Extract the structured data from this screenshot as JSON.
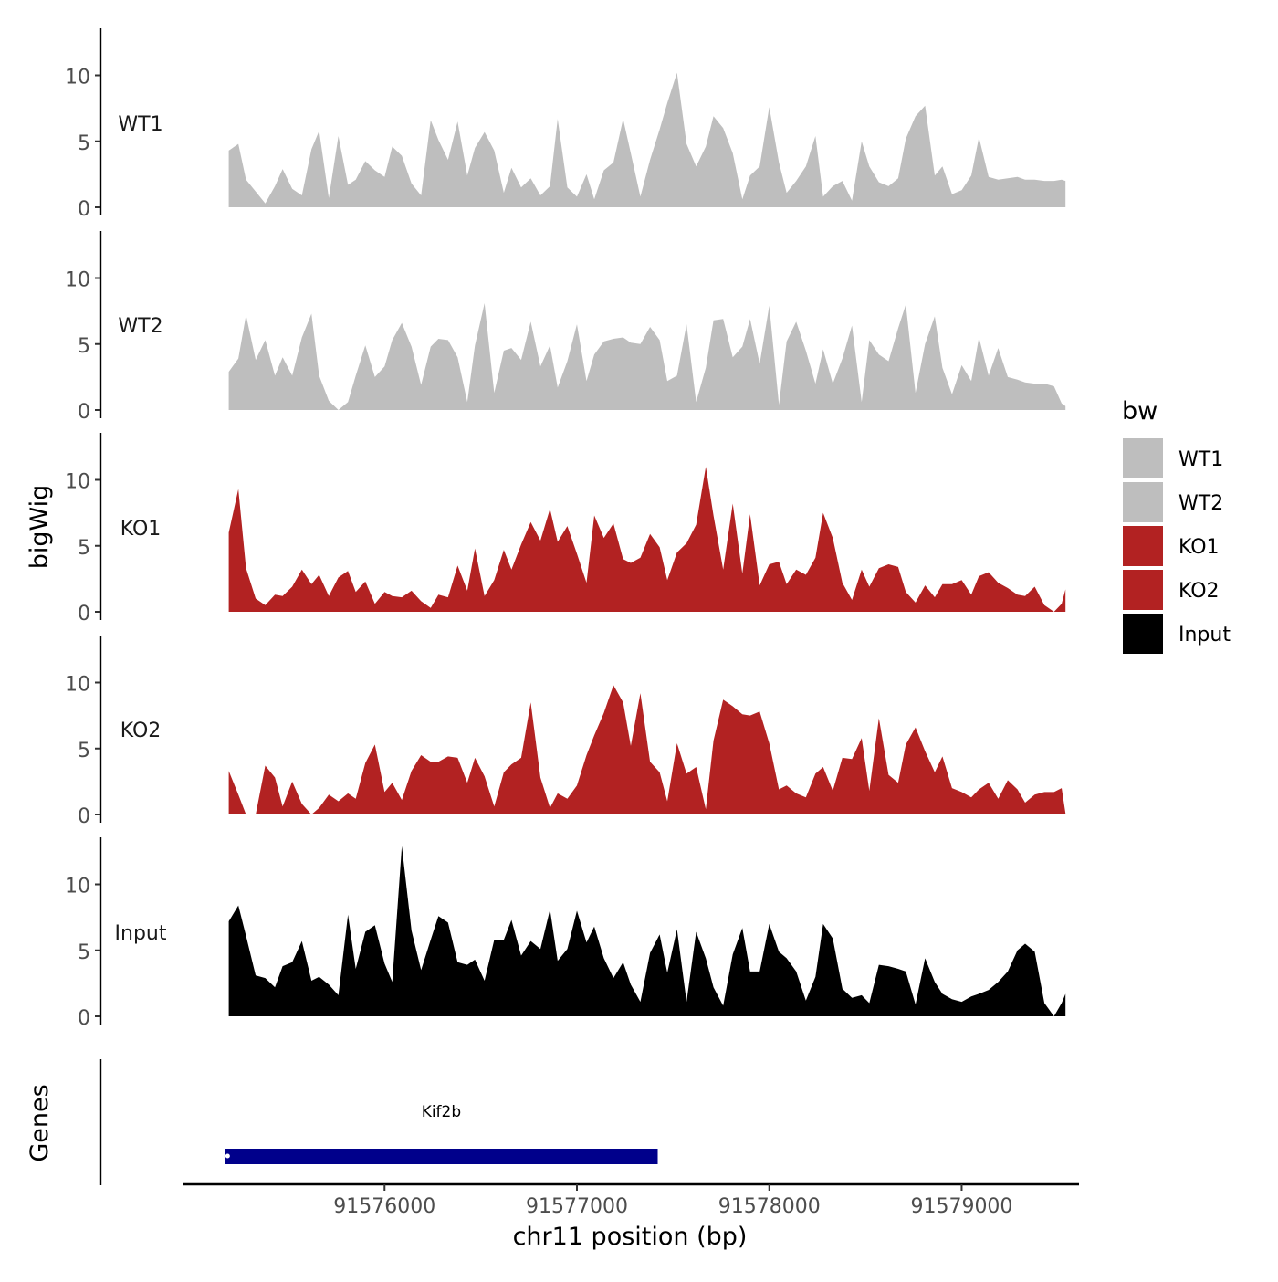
{
  "chart_data": {
    "type": "area",
    "y_axis_title": "bigWig",
    "x_axis_title": "chr11 position (bp)",
    "genes_axis_title": "Genes",
    "xlim": [
      91574950,
      91579610
    ],
    "data_xrange": [
      91575190,
      91579540
    ],
    "y_range": [
      0,
      14
    ],
    "y_ticks": [
      0,
      5,
      10
    ],
    "x_ticks": [
      91576000,
      91577000,
      91578000,
      91579000
    ],
    "x_tick_labels": [
      "91576000",
      "91577000",
      "91578000",
      "91579000"
    ],
    "legend": {
      "title": "bw",
      "entries": [
        {
          "label": "WT1",
          "color": "#bebebe"
        },
        {
          "label": "WT2",
          "color": "#bebebe"
        },
        {
          "label": "KO1",
          "color": "#b22222"
        },
        {
          "label": "KO2",
          "color": "#b22222"
        },
        {
          "label": "Input",
          "color": "#000000"
        }
      ]
    },
    "series": [
      {
        "name": "WT1",
        "color": "#bebebe",
        "x": [
          91575190,
          91575240,
          91575280,
          91575330,
          91575380,
          91575430,
          91575470,
          91575520,
          91575570,
          91575620,
          91575660,
          91575710,
          91575760,
          91575810,
          91575850,
          91575900,
          91575950,
          91576000,
          91576040,
          91576090,
          91576140,
          91576190,
          91576240,
          91576280,
          91576330,
          91576380,
          91576430,
          91576470,
          91576520,
          91576570,
          91576620,
          91576660,
          91576710,
          91576760,
          91576810,
          91576860,
          91576900,
          91576950,
          91577000,
          91577050,
          91577090,
          91577140,
          91577190,
          91577240,
          91577280,
          91577330,
          91577380,
          91577430,
          91577470,
          91577520,
          91577570,
          91577620,
          91577670,
          91577710,
          91577760,
          91577810,
          91577860,
          91577900,
          91577950,
          91578000,
          91578050,
          91578090,
          91578140,
          91578190,
          91578240,
          91578280,
          91578330,
          91578380,
          91578430,
          91578480,
          91578520,
          91578570,
          91578620,
          91578670,
          91578710,
          91578760,
          91578810,
          91578860,
          91578900,
          91578950,
          91579000,
          91579050,
          91579090,
          91579140,
          91579190,
          91579240,
          91579290,
          91579330,
          91579380,
          91579430,
          91579480,
          91579520,
          91579540
        ],
        "values": [
          4.3,
          4.8,
          2.1,
          1.2,
          0.3,
          1.6,
          2.9,
          1.4,
          0.9,
          4.4,
          5.8,
          0.7,
          5.4,
          1.7,
          2.1,
          3.5,
          2.8,
          2.3,
          4.6,
          3.9,
          1.8,
          0.9,
          6.6,
          5.1,
          3.6,
          6.5,
          2.4,
          4.5,
          5.7,
          4.3,
          1.1,
          3.0,
          1.5,
          2.2,
          0.9,
          1.6,
          6.7,
          1.5,
          0.8,
          2.5,
          0.6,
          2.8,
          3.4,
          6.7,
          4.1,
          0.8,
          3.6,
          5.9,
          7.9,
          10.2,
          4.8,
          3.1,
          4.6,
          6.9,
          6.0,
          4.1,
          0.6,
          2.4,
          3.1,
          7.6,
          3.4,
          1.1,
          2.0,
          3.1,
          5.4,
          0.8,
          1.6,
          2.0,
          0.5,
          5.0,
          3.1,
          1.9,
          1.6,
          2.2,
          5.2,
          6.9,
          7.7,
          2.4,
          3.1,
          1.0,
          1.3,
          2.4,
          5.3,
          2.3,
          2.1,
          2.2,
          2.3,
          2.1,
          2.1,
          2.0,
          2.0,
          2.1,
          2.0
        ]
      },
      {
        "name": "WT2",
        "color": "#bebebe",
        "x": [
          91575190,
          91575240,
          91575280,
          91575330,
          91575380,
          91575430,
          91575470,
          91575520,
          91575570,
          91575620,
          91575660,
          91575710,
          91575760,
          91575810,
          91575850,
          91575900,
          91575950,
          91576000,
          91576040,
          91576090,
          91576140,
          91576190,
          91576240,
          91576280,
          91576330,
          91576380,
          91576430,
          91576470,
          91576520,
          91576570,
          91576620,
          91576660,
          91576710,
          91576760,
          91576810,
          91576860,
          91576900,
          91576950,
          91577000,
          91577050,
          91577090,
          91577140,
          91577190,
          91577240,
          91577280,
          91577330,
          91577380,
          91577430,
          91577470,
          91577520,
          91577570,
          91577620,
          91577670,
          91577710,
          91577760,
          91577810,
          91577860,
          91577900,
          91577950,
          91578000,
          91578050,
          91578090,
          91578140,
          91578190,
          91578240,
          91578280,
          91578330,
          91578380,
          91578430,
          91578480,
          91578520,
          91578570,
          91578620,
          91578670,
          91578710,
          91578760,
          91578810,
          91578860,
          91578900,
          91578950,
          91579000,
          91579050,
          91579090,
          91579140,
          91579190,
          91579240,
          91579290,
          91579330,
          91579380,
          91579430,
          91579480,
          91579520,
          91579540
        ],
        "values": [
          2.9,
          3.9,
          7.2,
          3.8,
          5.3,
          2.6,
          4.0,
          2.6,
          5.5,
          7.3,
          2.6,
          0.7,
          0.0,
          0.6,
          2.6,
          4.9,
          2.5,
          3.3,
          5.3,
          6.6,
          4.8,
          1.9,
          4.8,
          5.4,
          5.3,
          4.0,
          0.6,
          4.9,
          8.1,
          1.3,
          4.5,
          4.7,
          3.8,
          6.7,
          3.3,
          4.9,
          1.7,
          3.7,
          6.5,
          2.2,
          4.2,
          5.2,
          5.4,
          5.5,
          5.1,
          5.0,
          6.3,
          5.3,
          2.2,
          2.6,
          6.5,
          0.6,
          3.2,
          6.8,
          6.9,
          4.0,
          4.8,
          6.9,
          3.5,
          7.9,
          0.4,
          5.2,
          6.7,
          4.5,
          2.0,
          4.6,
          2.0,
          3.9,
          6.4,
          0.6,
          5.3,
          4.2,
          3.7,
          6.2,
          8.0,
          1.3,
          5.0,
          7.1,
          3.2,
          1.2,
          3.4,
          2.2,
          5.5,
          2.6,
          4.7,
          2.5,
          2.3,
          2.1,
          2.0,
          2.0,
          1.8,
          0.5,
          0.3
        ]
      },
      {
        "name": "KO1",
        "color": "#b22222",
        "x": [
          91575190,
          91575240,
          91575280,
          91575330,
          91575380,
          91575430,
          91575470,
          91575520,
          91575570,
          91575620,
          91575660,
          91575710,
          91575760,
          91575810,
          91575850,
          91575900,
          91575950,
          91576000,
          91576040,
          91576090,
          91576140,
          91576190,
          91576240,
          91576280,
          91576330,
          91576380,
          91576430,
          91576470,
          91576520,
          91576570,
          91576620,
          91576660,
          91576710,
          91576760,
          91576810,
          91576860,
          91576900,
          91576950,
          91577000,
          91577050,
          91577090,
          91577140,
          91577190,
          91577240,
          91577280,
          91577330,
          91577380,
          91577430,
          91577470,
          91577520,
          91577570,
          91577620,
          91577670,
          91577710,
          91577760,
          91577810,
          91577860,
          91577900,
          91577950,
          91578000,
          91578050,
          91578090,
          91578140,
          91578190,
          91578240,
          91578280,
          91578330,
          91578380,
          91578430,
          91578480,
          91578520,
          91578570,
          91578620,
          91578670,
          91578710,
          91578760,
          91578810,
          91578860,
          91578900,
          91578950,
          91579000,
          91579050,
          91579090,
          91579140,
          91579190,
          91579240,
          91579290,
          91579330,
          91579380,
          91579430,
          91579480,
          91579520,
          91579540
        ],
        "values": [
          6.0,
          9.3,
          3.3,
          1.0,
          0.5,
          1.3,
          1.2,
          1.9,
          3.2,
          2.1,
          2.8,
          1.2,
          2.6,
          3.1,
          1.5,
          2.3,
          0.6,
          1.5,
          1.2,
          1.1,
          1.6,
          0.8,
          0.3,
          1.3,
          1.1,
          3.5,
          1.6,
          4.8,
          1.2,
          2.4,
          4.7,
          3.2,
          5.1,
          6.8,
          5.4,
          7.8,
          5.3,
          6.5,
          4.4,
          2.2,
          7.3,
          5.6,
          6.7,
          4.0,
          3.7,
          4.1,
          5.9,
          4.9,
          2.4,
          4.5,
          5.2,
          6.6,
          11.0,
          7.3,
          3.2,
          8.2,
          2.9,
          7.4,
          2.0,
          3.6,
          3.8,
          2.1,
          3.2,
          2.8,
          4.1,
          7.5,
          5.6,
          2.2,
          0.9,
          3.2,
          1.9,
          3.3,
          3.6,
          3.4,
          1.5,
          0.7,
          2.0,
          1.1,
          2.1,
          2.1,
          2.4,
          1.3,
          2.7,
          3.0,
          2.2,
          1.8,
          1.3,
          1.2,
          1.9,
          0.5,
          0.0,
          0.6,
          1.7
        ]
      },
      {
        "name": "KO2",
        "color": "#b22222",
        "x": [
          91575190,
          91575240,
          91575280,
          91575330,
          91575380,
          91575430,
          91575470,
          91575520,
          91575570,
          91575620,
          91575660,
          91575710,
          91575760,
          91575810,
          91575850,
          91575900,
          91575950,
          91576000,
          91576040,
          91576090,
          91576140,
          91576190,
          91576240,
          91576280,
          91576330,
          91576380,
          91576430,
          91576470,
          91576520,
          91576570,
          91576620,
          91576660,
          91576710,
          91576760,
          91576810,
          91576860,
          91576900,
          91576950,
          91577000,
          91577050,
          91577090,
          91577140,
          91577190,
          91577240,
          91577280,
          91577330,
          91577380,
          91577430,
          91577470,
          91577520,
          91577570,
          91577620,
          91577670,
          91577710,
          91577760,
          91577810,
          91577860,
          91577900,
          91577950,
          91578000,
          91578050,
          91578090,
          91578140,
          91578190,
          91578240,
          91578280,
          91578330,
          91578380,
          91578430,
          91578480,
          91578520,
          91578570,
          91578620,
          91578670,
          91578710,
          91578760,
          91578810,
          91578860,
          91578900,
          91578950,
          91579000,
          91579050,
          91579090,
          91579140,
          91579190,
          91579240,
          91579290,
          91579330,
          91579380,
          91579430,
          91579480,
          91579520,
          91579540
        ],
        "values": [
          3.3,
          1.5,
          0.0,
          0.0,
          3.7,
          2.8,
          0.6,
          2.5,
          0.8,
          0.0,
          0.5,
          1.5,
          1.0,
          1.6,
          1.2,
          3.9,
          5.3,
          1.7,
          2.4,
          1.1,
          3.3,
          4.5,
          4.0,
          4.0,
          4.4,
          4.3,
          2.4,
          4.3,
          2.9,
          0.6,
          3.2,
          3.8,
          4.3,
          8.5,
          2.8,
          0.5,
          1.6,
          1.2,
          2.2,
          4.5,
          6.0,
          7.7,
          9.8,
          8.5,
          5.2,
          9.2,
          4.0,
          3.2,
          1.0,
          5.4,
          3.1,
          3.6,
          0.4,
          5.6,
          8.7,
          8.2,
          7.6,
          7.5,
          7.8,
          5.4,
          1.9,
          2.2,
          1.6,
          1.3,
          3.1,
          3.6,
          1.8,
          4.3,
          4.2,
          5.8,
          1.8,
          7.3,
          3.0,
          2.4,
          5.3,
          6.6,
          4.8,
          3.2,
          4.4,
          2.0,
          1.7,
          1.3,
          1.9,
          2.4,
          1.2,
          2.6,
          1.9,
          0.9,
          1.5,
          1.7,
          1.7,
          2.0,
          0.1
        ]
      },
      {
        "name": "Input",
        "color": "#000000",
        "x": [
          91575190,
          91575240,
          91575280,
          91575330,
          91575380,
          91575430,
          91575470,
          91575520,
          91575570,
          91575620,
          91575660,
          91575710,
          91575760,
          91575810,
          91575850,
          91575900,
          91575950,
          91576000,
          91576040,
          91576090,
          91576140,
          91576190,
          91576240,
          91576280,
          91576330,
          91576380,
          91576430,
          91576470,
          91576520,
          91576570,
          91576620,
          91576660,
          91576710,
          91576760,
          91576810,
          91576860,
          91576900,
          91576950,
          91577000,
          91577050,
          91577090,
          91577140,
          91577190,
          91577240,
          91577280,
          91577330,
          91577380,
          91577430,
          91577470,
          91577520,
          91577570,
          91577620,
          91577670,
          91577710,
          91577760,
          91577810,
          91577860,
          91577900,
          91577950,
          91578000,
          91578050,
          91578090,
          91578140,
          91578190,
          91578240,
          91578280,
          91578330,
          91578380,
          91578430,
          91578480,
          91578520,
          91578570,
          91578620,
          91578670,
          91578710,
          91578760,
          91578810,
          91578860,
          91578900,
          91578950,
          91579000,
          91579050,
          91579090,
          91579140,
          91579190,
          91579240,
          91579290,
          91579330,
          91579380,
          91579430,
          91579480,
          91579520,
          91579540
        ],
        "values": [
          7.2,
          8.4,
          6.1,
          3.1,
          2.9,
          2.2,
          3.8,
          4.1,
          5.7,
          2.7,
          3.0,
          2.4,
          1.6,
          7.7,
          3.6,
          6.4,
          6.9,
          4.0,
          2.6,
          12.9,
          6.5,
          3.5,
          5.8,
          7.6,
          7.1,
          4.1,
          3.9,
          4.3,
          2.7,
          5.8,
          5.8,
          7.3,
          4.6,
          5.7,
          5.1,
          8.1,
          4.2,
          5.1,
          8.0,
          5.6,
          6.8,
          4.4,
          2.9,
          4.1,
          2.4,
          1.1,
          4.8,
          6.2,
          3.3,
          6.6,
          1.1,
          6.4,
          4.4,
          2.2,
          0.8,
          4.7,
          6.7,
          3.4,
          3.4,
          7.0,
          4.9,
          4.4,
          3.4,
          1.2,
          3.0,
          7.0,
          5.9,
          2.1,
          1.4,
          1.6,
          1.0,
          3.9,
          3.8,
          3.6,
          3.4,
          0.9,
          4.4,
          2.6,
          1.7,
          1.3,
          1.1,
          1.5,
          1.7,
          2.0,
          2.6,
          3.4,
          5.0,
          5.5,
          4.9,
          1.0,
          0.0,
          1.0,
          1.7
        ]
      }
    ],
    "genes": [
      {
        "name": "Kif2b",
        "start": 91575170,
        "end": 91577420,
        "color": "#00008b"
      }
    ]
  }
}
